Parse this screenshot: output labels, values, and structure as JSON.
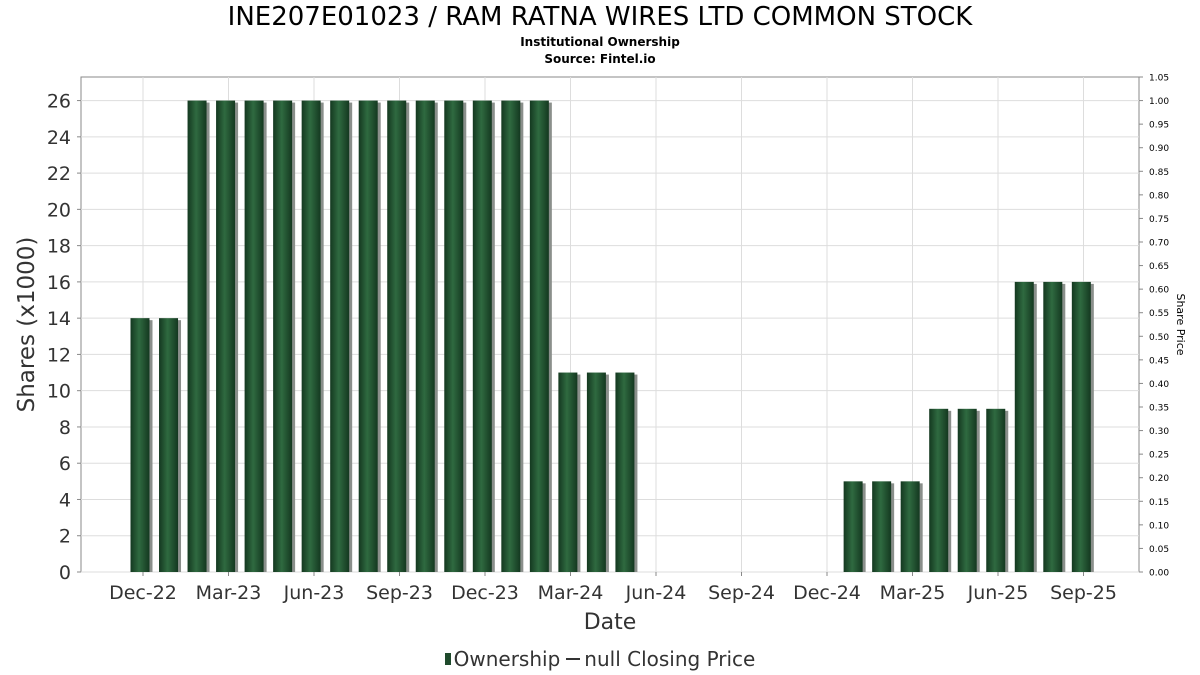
{
  "title": "INE207E01023 / RAM RATNA WIRES LTD COMMON STOCK",
  "subtitle": "Institutional Ownership",
  "source": "Source: Fintel.io",
  "legend": {
    "ownership": "Ownership",
    "price": "null Closing Price"
  },
  "colors": {
    "bar": "#1f4a2c",
    "bar_shadow": "#8a8f8b",
    "grid": "#dddddd"
  },
  "chart_data": {
    "type": "bar",
    "xlabel": "Date",
    "ylabel": "Shares (x1000)",
    "y2label": "Share Price",
    "ylim": [
      0,
      27.3
    ],
    "y2lim": [
      0,
      1.05
    ],
    "yticks": [
      0,
      2,
      4,
      6,
      8,
      10,
      12,
      14,
      16,
      18,
      20,
      22,
      24,
      26
    ],
    "y2ticks": [
      "0.00",
      "0.05",
      "0.10",
      "0.15",
      "0.20",
      "0.25",
      "0.30",
      "0.35",
      "0.40",
      "0.45",
      "0.50",
      "0.55",
      "0.60",
      "0.65",
      "0.70",
      "0.75",
      "0.80",
      "0.85",
      "0.90",
      "0.95",
      "1.00",
      "1.05"
    ],
    "xticks": [
      "Dec-22",
      "Mar-23",
      "Jun-23",
      "Sep-23",
      "Dec-23",
      "Mar-24",
      "Jun-24",
      "Sep-24",
      "Dec-24",
      "Mar-25",
      "Jun-25",
      "Sep-25"
    ],
    "grid": true,
    "legend_position": "bottom",
    "series": [
      {
        "name": "Ownership",
        "values": [
          14,
          14,
          26,
          26,
          26,
          26,
          26,
          26,
          26,
          26,
          26,
          26,
          26,
          26,
          26,
          11,
          11,
          11,
          0,
          0,
          0,
          0,
          0,
          0,
          0,
          5,
          5,
          5,
          9,
          9,
          9,
          16,
          16,
          16
        ]
      }
    ]
  }
}
